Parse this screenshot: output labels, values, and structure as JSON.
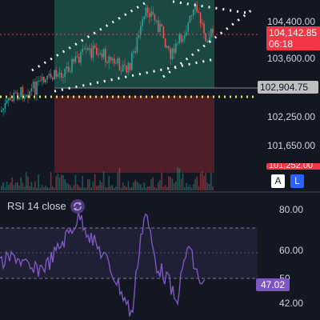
{
  "price_axis": {
    "labels": [
      "104,400.00",
      "103,600.00",
      "102,250.00",
      "101,650.00"
    ],
    "current_price": "104,142.85",
    "countdown": "06:18",
    "reference_price": "102,904.75",
    "cut_label": "101,252.00"
  },
  "scale_buttons": {
    "auto": "A",
    "log": "L"
  },
  "rsi": {
    "title": "RSI 14 close",
    "axis_labels": [
      "80.00",
      "60.00",
      "50",
      "42.00"
    ],
    "current_value": "47.02",
    "icon": "refresh-icon"
  },
  "colors": {
    "background": "#131722",
    "up": "#26a69a",
    "down": "#ef5350",
    "rsi_line": "#7e57c2",
    "price_badge": "#f23645",
    "reference_line": "#d7e36b"
  }
}
